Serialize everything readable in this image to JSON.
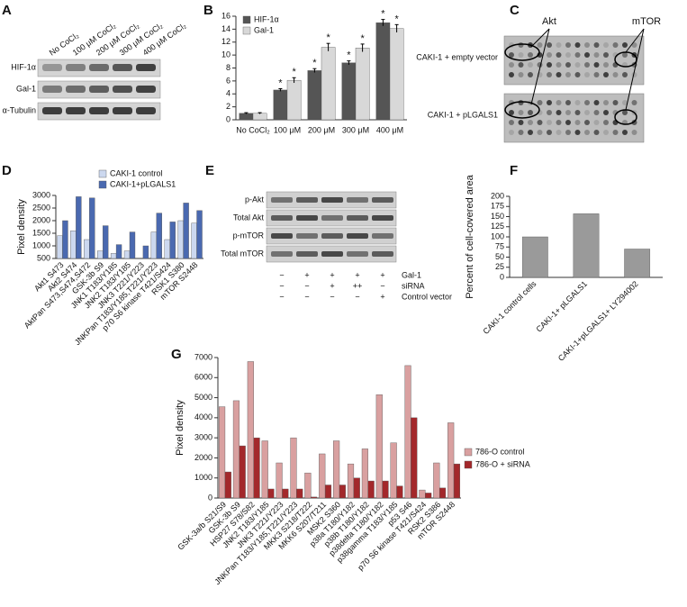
{
  "panel_labels": [
    "A",
    "B",
    "C",
    "D",
    "E",
    "F",
    "G"
  ],
  "blot_a": {
    "columns": [
      "No CoCl₂",
      "100 μM CoCl₂",
      "200 μM CoCl₂",
      "300 μM CoCl₂",
      "400 μM CoCl₂"
    ],
    "rows": [
      "HIF-1α",
      "Gal-1",
      "α-Tubulin"
    ]
  },
  "array_c": {
    "targets": [
      "Akt",
      "mTOR"
    ],
    "rows": [
      "CAKI-1 + empty vector",
      "CAKI-1 + pLGALS1"
    ]
  },
  "blot_e": {
    "rows": [
      "p-Akt",
      "Total Akt",
      "p-mTOR",
      "Total mTOR"
    ],
    "conditions": [
      {
        "name": "Gal-1",
        "signs": [
          "−",
          "+",
          "+",
          "+",
          "+"
        ]
      },
      {
        "name": "siRNA",
        "signs": [
          "−",
          "−",
          "+",
          "++",
          "−"
        ]
      },
      {
        "name": "Control vector",
        "signs": [
          "−",
          "−",
          "−",
          "−",
          "+"
        ]
      }
    ]
  },
  "chart_data": [
    {
      "type": "bar",
      "categories": [
        "No CoCl₂",
        "100 μM",
        "200 μM",
        "300 μM",
        "400 μM"
      ],
      "series": [
        {
          "name": "HIF-1α",
          "color": "#555555",
          "values": [
            1,
            4.6,
            7.6,
            8.8,
            15
          ],
          "errors": [
            0.1,
            0.2,
            0.3,
            0.3,
            0.5
          ],
          "significance": [
            null,
            "*",
            "*",
            "*",
            "*"
          ]
        },
        {
          "name": "Gal-1",
          "color": "#d8d8d8",
          "values": [
            1,
            6.1,
            11.2,
            11.1,
            14.1
          ],
          "errors": [
            0.1,
            0.4,
            0.6,
            0.6,
            0.6
          ],
          "significance": [
            null,
            "*",
            "*",
            "*",
            "*"
          ]
        }
      ],
      "ylim": [
        0,
        16
      ],
      "yticks": [
        0,
        2,
        4,
        6,
        8,
        10,
        12,
        14,
        16
      ]
    },
    {
      "type": "bar",
      "y_label": "Pixel density",
      "categories": [
        "Akt1 S473",
        "Akt2 S474",
        "AktPan S473,S474,S472",
        "GSK-3b S9",
        "JNK1 T183/Y185",
        "JNK2 T183/Y185",
        "JNK3 T221/Y223",
        "JNKPan T183/Y185,T221/Y223",
        "p70 S6 kinase T421/S424",
        "RSK1 S380",
        "mTOR S2448"
      ],
      "series": [
        {
          "name": "CAKI-1 control",
          "color": "#ccd8ef",
          "values": [
            1400,
            1600,
            1250,
            800,
            700,
            800,
            500,
            1550,
            1250,
            2000,
            1900
          ]
        },
        {
          "name": "CAKI-1+pLGALS1",
          "color": "#4a69b0",
          "values": [
            2000,
            2950,
            2900,
            1800,
            1050,
            1550,
            1000,
            2300,
            1950,
            2700,
            2400
          ]
        }
      ],
      "ylim": [
        500,
        3000
      ],
      "yticks": [
        500,
        1000,
        1500,
        2000,
        2500,
        3000
      ]
    },
    {
      "type": "bar",
      "y_label": "Percent of cell-covered area",
      "categories": [
        "CAKI-1 control cells",
        "CAKI-1+ pLGALS1",
        "CAKI-1+pLGALS1+ LY294002"
      ],
      "values": [
        100,
        157,
        70
      ],
      "color": "#9a9a9a",
      "ylim": [
        0,
        200
      ],
      "yticks": [
        0,
        25,
        50,
        75,
        100,
        125,
        150,
        175,
        200
      ]
    },
    {
      "type": "bar",
      "y_label": "Pixel density",
      "categories": [
        "GSK-3a/b S21/S9",
        "GSK-3b S9",
        "HSP27 S78/S82",
        "JNK2 T183/Y185",
        "JNK3 T221/Y223",
        "JNKPan T183/Y185,T221/Y223",
        "MKK3 S218/T222",
        "MKK6 S207/T211",
        "MSK2 S360",
        "p38a T180/Y182",
        "p38b T180/Y182",
        "p38delta T180/Y182",
        "p38gamma T183/Y185",
        "p53 S46",
        "p70 S6 kinase T421/S424",
        "RSK2 S386",
        "mTOR S2448"
      ],
      "series": [
        {
          "name": "786-O control",
          "color": "#d9a0a0",
          "values": [
            4550,
            4850,
            6800,
            2850,
            1750,
            3000,
            1250,
            2200,
            2850,
            1700,
            2450,
            5150,
            2750,
            6600,
            400,
            1750,
            3750
          ]
        },
        {
          "name": "786-O + siRNA",
          "color": "#a3282b",
          "values": [
            1300,
            2600,
            3000,
            450,
            450,
            450,
            50,
            650,
            650,
            1000,
            850,
            850,
            600,
            4000,
            250,
            500,
            1700
          ]
        }
      ],
      "ylim": [
        0,
        7000
      ],
      "yticks": [
        0,
        1000,
        2000,
        3000,
        4000,
        5000,
        6000,
        7000
      ]
    }
  ]
}
